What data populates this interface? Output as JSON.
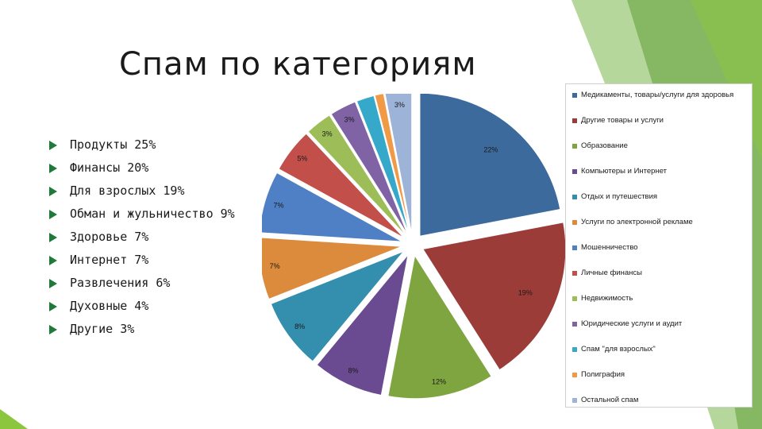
{
  "title": "Спам по категориям",
  "bullets": [
    {
      "label": "Продукты 25%"
    },
    {
      "label": "Финансы 20%"
    },
    {
      "label": "Для взрослых 19%"
    },
    {
      "label": "Обман и жульничество 9%"
    },
    {
      "label": "Здоровье 7%"
    },
    {
      "label": "Интернет 7%"
    },
    {
      "label": "Развлечения 6%"
    },
    {
      "label": "Духовные 4%"
    },
    {
      "label": "Другие 3%"
    }
  ],
  "chart_data": {
    "type": "pie",
    "title": "",
    "exploded": true,
    "legend_position": "right",
    "slices": [
      {
        "name": "Медикаменты, товары/услуги для здоровья",
        "value": 22,
        "label": "22%",
        "color": "#3d6a9c"
      },
      {
        "name": "Другие товары и услуги",
        "value": 19,
        "label": "19%",
        "color": "#9b3c39"
      },
      {
        "name": "Образование",
        "value": 12,
        "label": "12%",
        "color": "#7ea540"
      },
      {
        "name": "Компьютеры и Интернет",
        "value": 8,
        "label": "8%",
        "color": "#6a4a91"
      },
      {
        "name": "Отдых и путешествия",
        "value": 8,
        "label": "8%",
        "color": "#338fad"
      },
      {
        "name": "Услуги по электронной рекламе",
        "value": 7,
        "label": "7%",
        "color": "#dc8a3b"
      },
      {
        "name": "Мошенничество",
        "value": 7,
        "label": "7%",
        "color": "#4f7fc4"
      },
      {
        "name": "Личные финансы",
        "value": 5,
        "label": "5%",
        "color": "#c34f4b"
      },
      {
        "name": "Недвижимость",
        "value": 3,
        "label": "3%",
        "color": "#9cbd58"
      },
      {
        "name": "Юридические услуги и аудит",
        "value": 3,
        "label": "3%",
        "color": "#7f63a5"
      },
      {
        "name": "Спам \"для взрослых\"",
        "value": 2,
        "label": "2%",
        "color": "#36a8c9"
      },
      {
        "name": "Полиграфия",
        "value": 1,
        "label": "1%",
        "color": "#f09a47"
      },
      {
        "name": "Остальной спам",
        "value": 3,
        "label": "3%",
        "color": "#9eb3d8"
      }
    ]
  }
}
